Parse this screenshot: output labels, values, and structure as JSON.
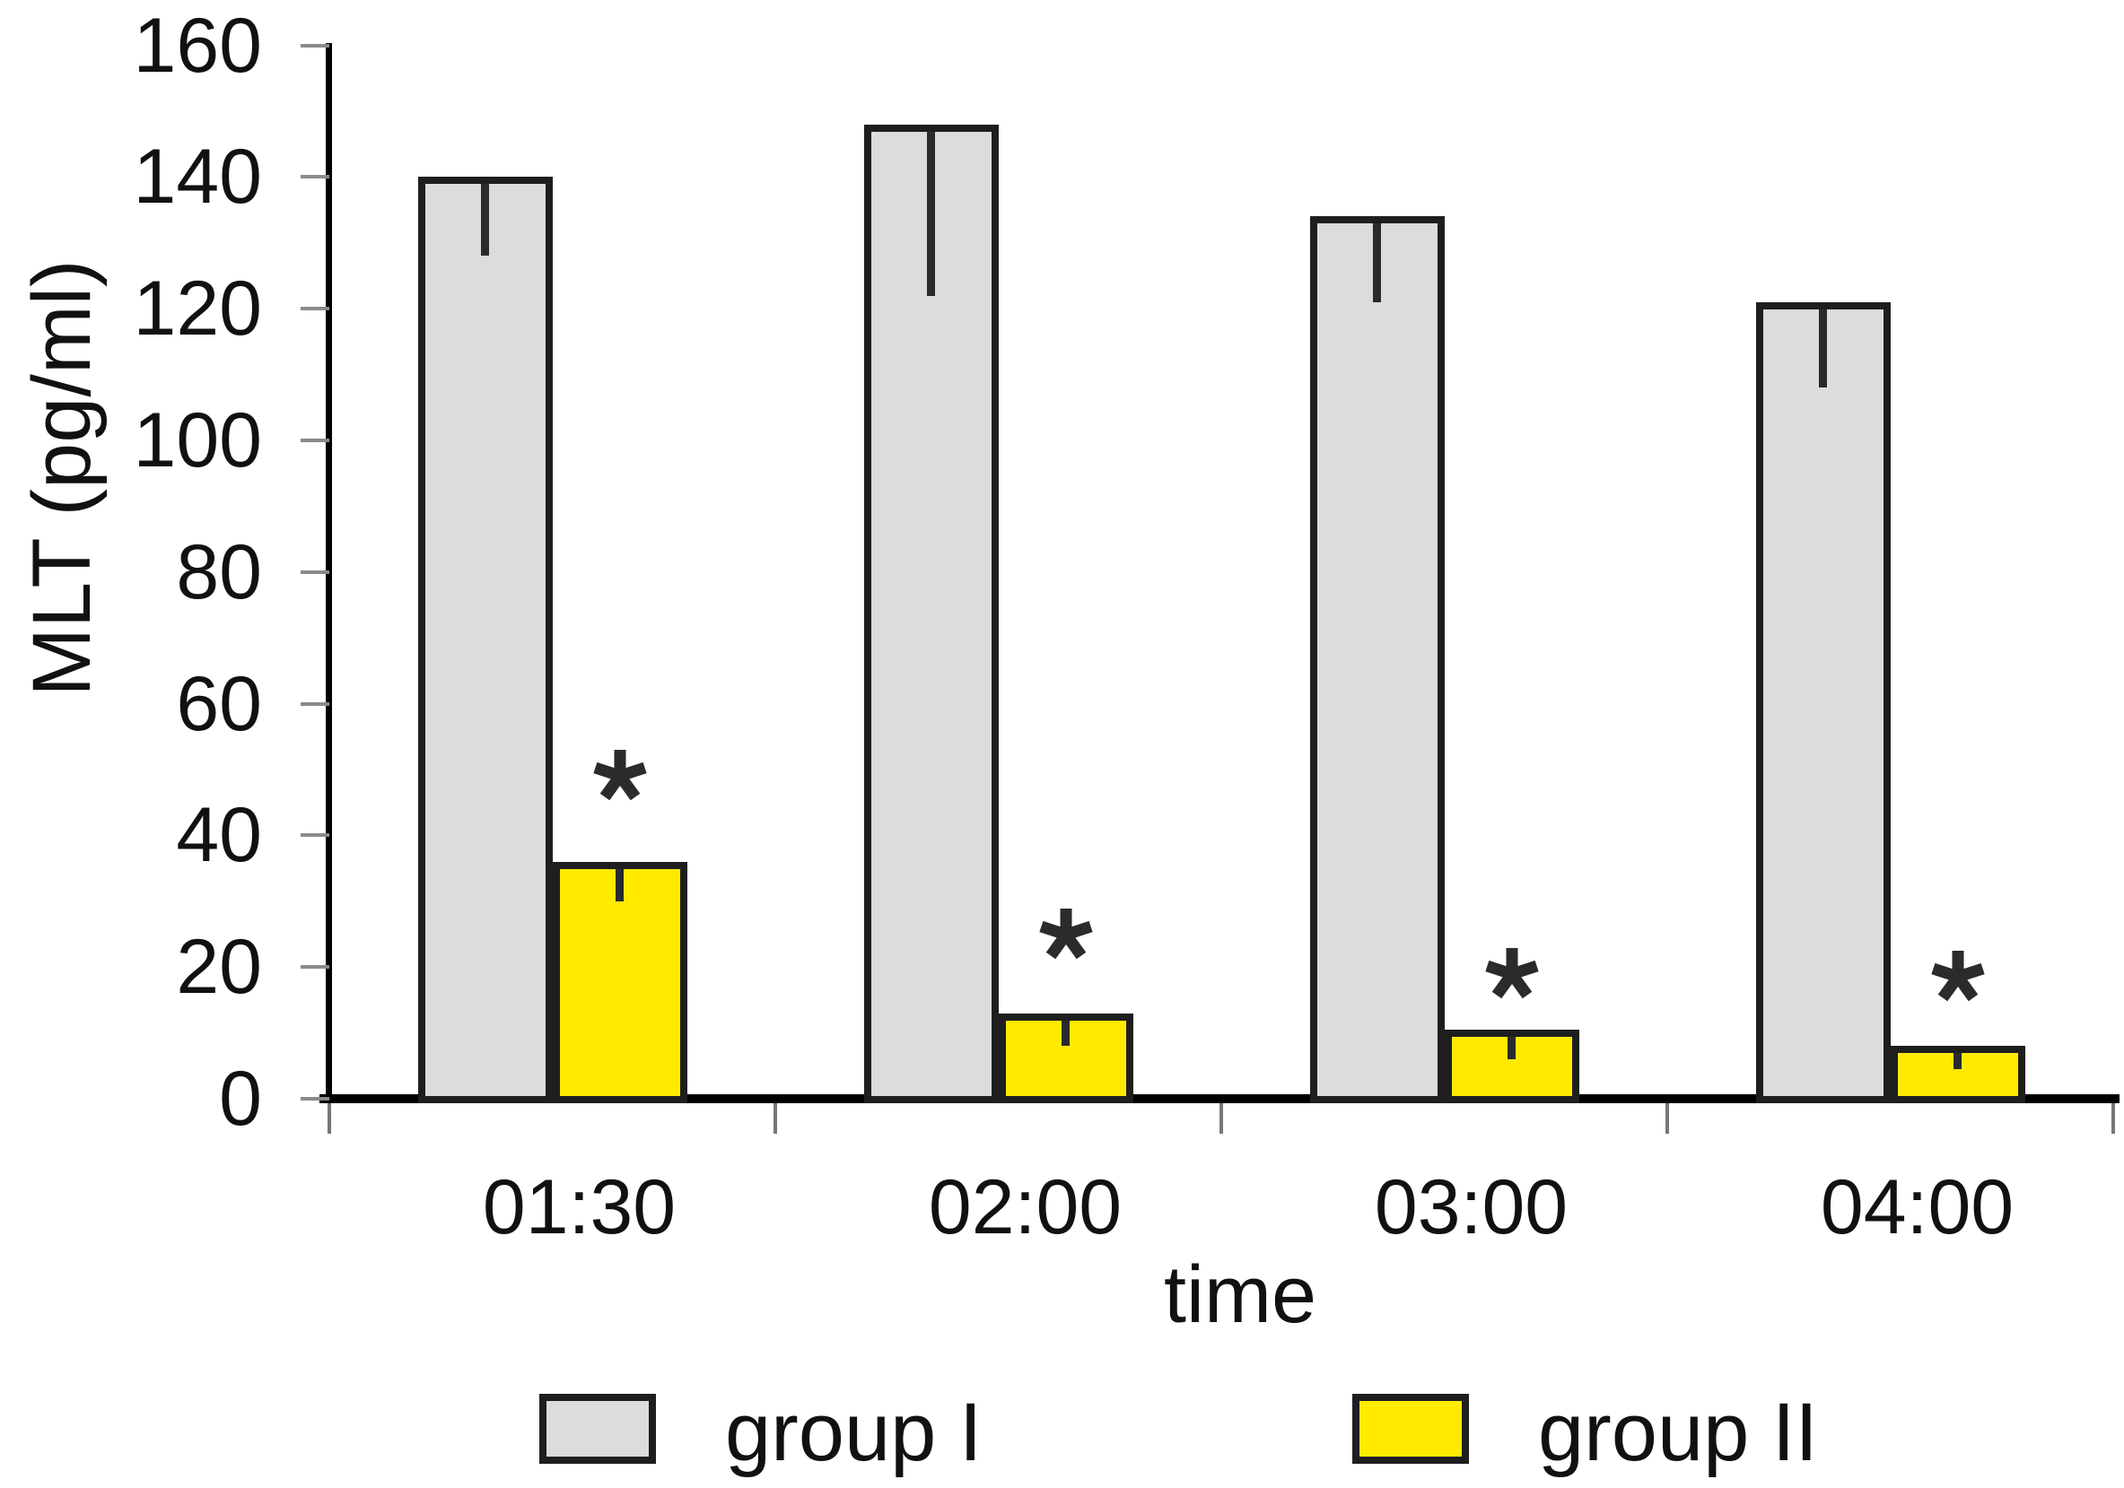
{
  "chart_data": {
    "type": "bar",
    "title": "",
    "xlabel": "time",
    "ylabel": "MLT (pg/ml)",
    "categories": [
      "01:30",
      "02:00",
      "03:00",
      "04:00"
    ],
    "series": [
      {
        "name": "group I",
        "color": "#dadddb",
        "values": [
          140,
          148,
          134,
          121
        ],
        "error_lower": [
          12,
          26,
          13,
          13
        ]
      },
      {
        "name": "group II",
        "color": "#ffea00",
        "values": [
          36,
          13,
          10.5,
          8
        ],
        "error_lower": [
          6,
          5,
          4.5,
          3.5
        ]
      }
    ],
    "significance_markers": {
      "symbol": "*",
      "applies_to_series": "group II",
      "marker_center_values": [
        49,
        25,
        19,
        18.5
      ]
    },
    "ylim": [
      0,
      160
    ],
    "ytick_step": 20,
    "yticks": [
      0,
      20,
      40,
      60,
      80,
      100,
      120,
      140,
      160
    ],
    "error_bar_direction": "lower",
    "grid": false,
    "legend_position": "bottom",
    "colors": {
      "axis": "#000000",
      "bar_border": "#1e1e1e",
      "tick": "#8a8a8a",
      "text": "#111111",
      "marker": "#2b2b2b"
    }
  }
}
